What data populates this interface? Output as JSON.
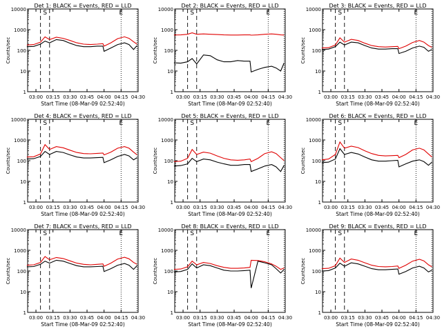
{
  "figure": {
    "x_tick_labels": [
      "03:00",
      "03:15",
      "03:30",
      "03:45",
      "04:00",
      "04:15",
      "04:30"
    ],
    "y_tick_labels": [
      "1",
      "10",
      "100",
      "1000",
      "10000"
    ],
    "ylabel": "Counts/sec",
    "xlabel": "Start Time (08-Mar-09 02:52:40)",
    "colors": {
      "events": "#000000",
      "lld": "#e00000"
    }
  },
  "chart_data": [
    {
      "type": "line",
      "title": "Det 1: BLACK = Events, RED = LLD",
      "markers": [
        "S",
        "E"
      ],
      "xlim": [
        "02:52:40",
        "04:30"
      ],
      "ylim": [
        1,
        10000
      ],
      "yscale": "log",
      "series": [
        {
          "name": "Events",
          "color": "#000000",
          "x": [
            "02:52",
            "02:58",
            "03:04",
            "03:08",
            "03:12",
            "03:18",
            "03:24",
            "03:30",
            "03:36",
            "03:42",
            "03:48",
            "03:54",
            "03:59",
            "04:00",
            "04:06",
            "04:12",
            "04:18",
            "04:22",
            "04:26",
            "04:29"
          ],
          "values": [
            150,
            155,
            200,
            280,
            230,
            330,
            300,
            220,
            170,
            150,
            150,
            160,
            160,
            90,
            130,
            190,
            230,
            190,
            110,
            170
          ]
        },
        {
          "name": "LLD",
          "color": "#e00000",
          "x": [
            "02:52",
            "02:58",
            "03:04",
            "03:08",
            "03:12",
            "03:18",
            "03:24",
            "03:30",
            "03:36",
            "03:42",
            "03:48",
            "03:54",
            "03:59",
            "04:00",
            "04:06",
            "04:12",
            "04:18",
            "04:22",
            "04:26",
            "04:29"
          ],
          "values": [
            180,
            190,
            250,
            450,
            330,
            430,
            380,
            300,
            230,
            200,
            190,
            200,
            210,
            160,
            230,
            370,
            450,
            380,
            260,
            200
          ]
        }
      ]
    },
    {
      "type": "line",
      "title": "Det 2: BLACK = Events, RED = LLD",
      "markers": [
        "S",
        "E"
      ],
      "xlim": [
        "02:52:40",
        "04:30"
      ],
      "ylim": [
        1,
        10000
      ],
      "yscale": "log",
      "series": [
        {
          "name": "Events",
          "color": "#000000",
          "x": [
            "02:52",
            "02:58",
            "03:04",
            "03:08",
            "03:12",
            "03:18",
            "03:24",
            "03:30",
            "03:36",
            "03:42",
            "03:48",
            "03:54",
            "03:59",
            "04:00",
            "04:06",
            "04:12",
            "04:18",
            "04:22",
            "04:26",
            "04:29"
          ],
          "values": [
            25,
            24,
            28,
            40,
            22,
            60,
            55,
            35,
            28,
            28,
            32,
            30,
            30,
            9,
            12,
            15,
            17,
            14,
            10,
            25
          ]
        },
        {
          "name": "LLD",
          "color": "#e00000",
          "x": [
            "02:52",
            "02:58",
            "03:04",
            "03:08",
            "03:12",
            "03:18",
            "03:24",
            "03:30",
            "03:36",
            "03:42",
            "03:48",
            "03:54",
            "03:59",
            "04:00",
            "04:06",
            "04:12",
            "04:18",
            "04:22",
            "04:26",
            "04:29"
          ],
          "values": [
            550,
            560,
            600,
            700,
            600,
            620,
            600,
            580,
            560,
            550,
            550,
            560,
            560,
            540,
            560,
            600,
            620,
            600,
            560,
            550
          ]
        }
      ]
    },
    {
      "type": "line",
      "title": "Det 3: BLACK = Events, RED = LLD",
      "markers": [
        "S",
        "E"
      ],
      "xlim": [
        "02:52:40",
        "04:30"
      ],
      "ylim": [
        1,
        10000
      ],
      "yscale": "log",
      "series": [
        {
          "name": "Events",
          "color": "#000000",
          "x": [
            "02:52",
            "02:58",
            "03:04",
            "03:08",
            "03:12",
            "03:18",
            "03:24",
            "03:30",
            "03:36",
            "03:42",
            "03:48",
            "03:54",
            "03:59",
            "04:00",
            "04:06",
            "04:12",
            "04:18",
            "04:22",
            "04:26",
            "04:29"
          ],
          "values": [
            110,
            115,
            150,
            250,
            180,
            250,
            230,
            170,
            130,
            115,
            115,
            120,
            120,
            70,
            90,
            130,
            160,
            140,
            90,
            110
          ]
        },
        {
          "name": "LLD",
          "color": "#e00000",
          "x": [
            "02:52",
            "02:58",
            "03:04",
            "03:08",
            "03:12",
            "03:18",
            "03:24",
            "03:30",
            "03:36",
            "03:42",
            "03:48",
            "03:54",
            "03:59",
            "04:00",
            "04:06",
            "04:12",
            "04:18",
            "04:22",
            "04:26",
            "04:29"
          ],
          "values": [
            130,
            135,
            180,
            400,
            250,
            340,
            300,
            220,
            170,
            150,
            145,
            150,
            155,
            120,
            160,
            240,
            300,
            250,
            170,
            140
          ]
        }
      ]
    },
    {
      "type": "line",
      "title": "Det 4: BLACK = Events, RED = LLD",
      "markers": [
        "S",
        "E"
      ],
      "xlim": [
        "02:52:40",
        "04:30"
      ],
      "ylim": [
        1,
        10000
      ],
      "yscale": "log",
      "series": [
        {
          "name": "Events",
          "color": "#000000",
          "x": [
            "02:52",
            "02:58",
            "03:04",
            "03:08",
            "03:12",
            "03:18",
            "03:24",
            "03:30",
            "03:36",
            "03:42",
            "03:48",
            "03:54",
            "03:59",
            "04:00",
            "04:06",
            "04:12",
            "04:18",
            "04:22",
            "04:26",
            "04:29"
          ],
          "values": [
            120,
            125,
            160,
            280,
            200,
            280,
            250,
            190,
            150,
            135,
            135,
            140,
            145,
            80,
            110,
            160,
            200,
            170,
            110,
            140
          ]
        },
        {
          "name": "LLD",
          "color": "#e00000",
          "x": [
            "02:52",
            "02:58",
            "03:04",
            "03:08",
            "03:12",
            "03:18",
            "03:24",
            "03:30",
            "03:36",
            "03:42",
            "03:48",
            "03:54",
            "03:59",
            "04:00",
            "04:06",
            "04:12",
            "04:18",
            "04:22",
            "04:26",
            "04:29"
          ],
          "values": [
            150,
            155,
            210,
            600,
            350,
            480,
            420,
            320,
            250,
            220,
            215,
            225,
            235,
            190,
            260,
            400,
            480,
            400,
            260,
            190
          ]
        }
      ]
    },
    {
      "type": "line",
      "title": "Det 5: BLACK = Events, RED = LLD",
      "markers": [
        "S",
        "E"
      ],
      "xlim": [
        "02:52:40",
        "04:30"
      ],
      "ylim": [
        1,
        10000
      ],
      "yscale": "log",
      "series": [
        {
          "name": "Events",
          "color": "#000000",
          "x": [
            "02:52",
            "02:58",
            "03:04",
            "03:08",
            "03:12",
            "03:18",
            "03:24",
            "03:30",
            "03:36",
            "03:42",
            "03:48",
            "03:54",
            "03:59",
            "04:00",
            "04:06",
            "04:12",
            "04:18",
            "04:22",
            "04:26",
            "04:29"
          ],
          "values": [
            55,
            58,
            70,
            130,
            90,
            120,
            110,
            85,
            70,
            60,
            60,
            65,
            65,
            30,
            40,
            55,
            65,
            50,
            30,
            60
          ]
        },
        {
          "name": "LLD",
          "color": "#e00000",
          "x": [
            "02:52",
            "02:58",
            "03:04",
            "03:08",
            "03:12",
            "03:18",
            "03:24",
            "03:30",
            "03:36",
            "03:42",
            "03:48",
            "03:54",
            "03:59",
            "04:00",
            "04:06",
            "04:12",
            "04:18",
            "04:22",
            "04:26",
            "04:29"
          ],
          "values": [
            90,
            95,
            130,
            350,
            200,
            260,
            230,
            170,
            130,
            110,
            105,
            110,
            120,
            90,
            130,
            220,
            270,
            220,
            140,
            100
          ]
        }
      ]
    },
    {
      "type": "line",
      "title": "Det 6: BLACK = Events, RED = LLD",
      "markers": [
        "S",
        "E"
      ],
      "xlim": [
        "02:52:40",
        "04:30"
      ],
      "ylim": [
        1,
        10000
      ],
      "yscale": "log",
      "series": [
        {
          "name": "Events",
          "color": "#000000",
          "x": [
            "02:52",
            "02:58",
            "03:04",
            "03:08",
            "03:12",
            "03:18",
            "03:24",
            "03:30",
            "03:36",
            "03:42",
            "03:48",
            "03:54",
            "03:59",
            "04:00",
            "04:06",
            "04:12",
            "04:18",
            "04:22",
            "04:26",
            "04:29"
          ],
          "values": [
            80,
            85,
            120,
            380,
            200,
            250,
            210,
            150,
            110,
            95,
            95,
            100,
            105,
            50,
            70,
            95,
            110,
            90,
            60,
            85
          ]
        },
        {
          "name": "LLD",
          "color": "#e00000",
          "x": [
            "02:52",
            "02:58",
            "03:04",
            "03:08",
            "03:12",
            "03:18",
            "03:24",
            "03:30",
            "03:36",
            "03:42",
            "03:48",
            "03:54",
            "03:59",
            "04:00",
            "04:06",
            "04:12",
            "04:18",
            "04:22",
            "04:26",
            "04:29"
          ],
          "values": [
            110,
            120,
            200,
            800,
            400,
            500,
            430,
            300,
            220,
            180,
            170,
            175,
            180,
            140,
            200,
            330,
            400,
            330,
            210,
            150
          ]
        }
      ]
    },
    {
      "type": "line",
      "title": "Det 7: BLACK = Events, RED = LLD",
      "markers": [
        "S",
        "E"
      ],
      "xlim": [
        "02:52:40",
        "04:30"
      ],
      "ylim": [
        1,
        10000
      ],
      "yscale": "log",
      "series": [
        {
          "name": "Events",
          "color": "#000000",
          "x": [
            "02:52",
            "02:58",
            "03:04",
            "03:08",
            "03:12",
            "03:18",
            "03:24",
            "03:30",
            "03:36",
            "03:42",
            "03:48",
            "03:54",
            "03:59",
            "04:00",
            "04:06",
            "04:12",
            "04:18",
            "04:22",
            "04:26",
            "04:29"
          ],
          "values": [
            160,
            165,
            210,
            300,
            240,
            330,
            300,
            230,
            180,
            160,
            160,
            165,
            170,
            95,
            130,
            190,
            230,
            190,
            120,
            180
          ]
        },
        {
          "name": "LLD",
          "color": "#e00000",
          "x": [
            "02:52",
            "02:58",
            "03:04",
            "03:08",
            "03:12",
            "03:18",
            "03:24",
            "03:30",
            "03:36",
            "03:42",
            "03:48",
            "03:54",
            "03:59",
            "04:00",
            "04:06",
            "04:12",
            "04:18",
            "04:22",
            "04:26",
            "04:29"
          ],
          "values": [
            190,
            200,
            260,
            500,
            350,
            450,
            400,
            310,
            240,
            210,
            200,
            210,
            220,
            170,
            240,
            380,
            460,
            390,
            260,
            210
          ]
        }
      ]
    },
    {
      "type": "line",
      "title": "Det 8: BLACK = Events, RED = LLD",
      "markers": [
        "S",
        "E"
      ],
      "xlim": [
        "02:52:40",
        "04:30"
      ],
      "ylim": [
        1,
        10000
      ],
      "yscale": "log",
      "series": [
        {
          "name": "Events",
          "color": "#000000",
          "x": [
            "02:52",
            "02:58",
            "03:04",
            "03:08",
            "03:12",
            "03:18",
            "03:24",
            "03:30",
            "03:36",
            "03:42",
            "03:48",
            "03:54",
            "03:59",
            "04:00",
            "04:06",
            "04:12",
            "04:18",
            "04:22",
            "04:26",
            "04:29"
          ],
          "values": [
            90,
            95,
            120,
            220,
            140,
            200,
            180,
            140,
            110,
            100,
            100,
            105,
            110,
            15,
            300,
            250,
            200,
            130,
            80,
            120
          ]
        },
        {
          "name": "LLD",
          "color": "#e00000",
          "x": [
            "02:52",
            "02:58",
            "03:04",
            "03:08",
            "03:12",
            "03:18",
            "03:24",
            "03:30",
            "03:36",
            "03:42",
            "03:48",
            "03:54",
            "03:59",
            "04:00",
            "04:06",
            "04:12",
            "04:18",
            "04:22",
            "04:26",
            "04:29"
          ],
          "values": [
            120,
            125,
            160,
            300,
            200,
            260,
            230,
            180,
            150,
            135,
            135,
            140,
            150,
            330,
            320,
            280,
            220,
            170,
            120,
            140
          ]
        }
      ]
    },
    {
      "type": "line",
      "title": "Det 9: BLACK = Events, RED = LLD",
      "markers": [
        "S",
        "E"
      ],
      "xlim": [
        "02:52:40",
        "04:30"
      ],
      "ylim": [
        1,
        10000
      ],
      "yscale": "log",
      "series": [
        {
          "name": "Events",
          "color": "#000000",
          "x": [
            "02:52",
            "02:58",
            "03:04",
            "03:08",
            "03:12",
            "03:18",
            "03:24",
            "03:30",
            "03:36",
            "03:42",
            "03:48",
            "03:54",
            "03:59",
            "04:00",
            "04:06",
            "04:12",
            "04:18",
            "04:22",
            "04:26",
            "04:29"
          ],
          "values": [
            100,
            105,
            140,
            240,
            170,
            250,
            220,
            170,
            130,
            115,
            115,
            120,
            125,
            70,
            95,
            140,
            170,
            140,
            90,
            110
          ]
        },
        {
          "name": "LLD",
          "color": "#e00000",
          "x": [
            "02:52",
            "02:58",
            "03:04",
            "03:08",
            "03:12",
            "03:18",
            "03:24",
            "03:30",
            "03:36",
            "03:42",
            "03:48",
            "03:54",
            "03:59",
            "04:00",
            "04:06",
            "04:12",
            "04:18",
            "04:22",
            "04:26",
            "04:29"
          ],
          "values": [
            130,
            135,
            180,
            420,
            260,
            380,
            330,
            250,
            190,
            165,
            160,
            165,
            175,
            135,
            190,
            300,
            370,
            310,
            200,
            160
          ]
        }
      ]
    }
  ]
}
